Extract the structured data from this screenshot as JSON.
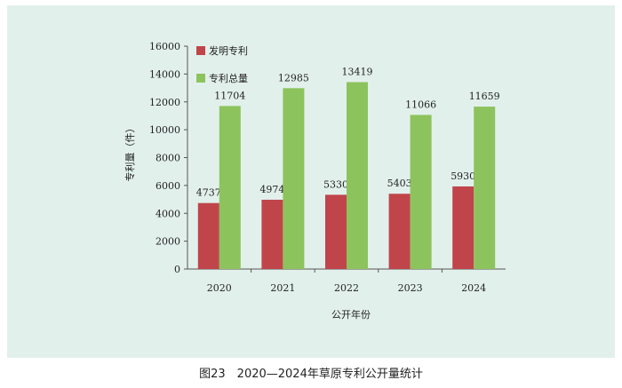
{
  "caption": "图23　2020—2024年草原专利公开量统计",
  "chart_data": {
    "type": "bar",
    "categories": [
      "2020",
      "2021",
      "2022",
      "2023",
      "2024"
    ],
    "series": [
      {
        "name": "发明专利",
        "values": [
          4737,
          4974,
          5330,
          5403,
          5930
        ],
        "color": "#c0454a"
      },
      {
        "name": "专利总量",
        "values": [
          11704,
          12985,
          13419,
          11066,
          11659
        ],
        "color": "#8dc35d"
      }
    ],
    "xlabel": "公开年份",
    "ylabel": "专利量（件）",
    "ylim": [
      0,
      16000
    ],
    "yticks": [
      "0",
      "2000",
      "4000",
      "6000",
      "8000",
      "10000",
      "12000",
      "14000",
      "16000"
    ],
    "legend_position": "top-left",
    "grid": false
  }
}
